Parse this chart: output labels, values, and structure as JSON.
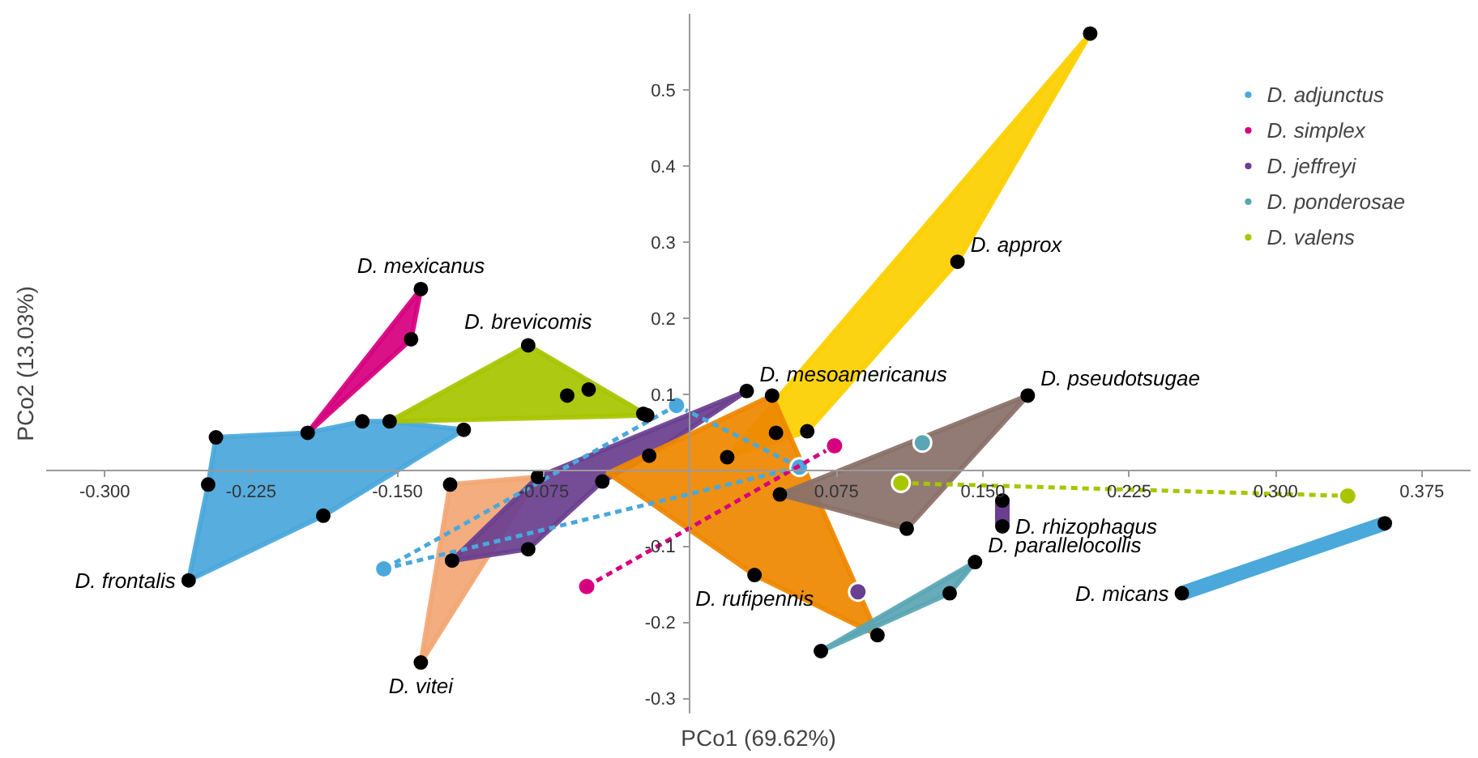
{
  "chart_data": {
    "type": "scatter",
    "xlabel": "PCo1 (69.62%)",
    "ylabel": "PCo2 (13.03%)",
    "xlim": [
      -0.33,
      0.4
    ],
    "ylim": [
      -0.32,
      0.6
    ],
    "xticks": [
      {
        "value": -0.3,
        "label": "-0.300"
      },
      {
        "value": -0.225,
        "label": "-0.225"
      },
      {
        "value": -0.15,
        "label": "-0.150"
      },
      {
        "value": -0.075,
        "label": "-0.075"
      },
      {
        "value": 0.075,
        "label": "0.075"
      },
      {
        "value": 0.15,
        "label": "0.150"
      },
      {
        "value": 0.225,
        "label": "0.225"
      },
      {
        "value": 0.3,
        "label": "0.300"
      },
      {
        "value": 0.375,
        "label": "0.375"
      }
    ],
    "yticks": [
      -0.3,
      -0.2,
      -0.1,
      0.1,
      0.2,
      0.3,
      0.4,
      0.5
    ],
    "grid": false,
    "legend": "top right",
    "series": [
      {
        "type": "area",
        "name": "D. frontalis",
        "color": "#4aa8db",
        "x": [
          -0.257,
          -0.247,
          -0.243,
          -0.196,
          -0.168,
          -0.154,
          -0.116,
          -0.188
        ],
        "values": [
          -0.145,
          -0.019,
          0.043,
          0.049,
          0.064,
          0.064,
          0.053,
          -0.06
        ]
      },
      {
        "type": "area",
        "name": "D. mexicanus",
        "color": "#d6007f",
        "x": [
          -0.138,
          -0.143,
          -0.196
        ],
        "values": [
          0.238,
          0.172,
          0.049
        ]
      },
      {
        "type": "area",
        "name": "D. brevicomis",
        "color": "#a8c500",
        "x": [
          -0.083,
          -0.022,
          -0.154
        ],
        "values": [
          0.164,
          0.072,
          0.064
        ]
      },
      {
        "type": "area",
        "name": "D. vitei",
        "color": "#f2a774",
        "x": [
          -0.138,
          -0.123,
          -0.078
        ],
        "values": [
          -0.253,
          -0.019,
          -0.009
        ]
      },
      {
        "type": "area",
        "name": "D. approx",
        "color": "#fcd000",
        "x": [
          0.137,
          0.06,
          0.019,
          0.205
        ],
        "values": [
          0.274,
          0.051,
          0.017,
          0.574
        ]
      },
      {
        "type": "area",
        "name": "D. mesoamericanus",
        "color": "#6b3f8f",
        "x": [
          0.029,
          -0.078,
          -0.122,
          -0.083,
          -0.045,
          -0.021
        ],
        "values": [
          0.104,
          -0.009,
          -0.119,
          -0.104,
          -0.015,
          0.019
        ]
      },
      {
        "type": "area",
        "name": "D. rufipennis",
        "color": "#ee8800",
        "x": [
          0.033,
          -0.042,
          0.042,
          0.096
        ],
        "values": [
          -0.138,
          -0.004,
          0.098,
          -0.217
        ]
      },
      {
        "type": "area",
        "name": "D. pseudotsugae",
        "color": "#8a7169",
        "x": [
          0.173,
          0.111,
          0.046
        ],
        "values": [
          0.098,
          -0.077,
          -0.032
        ]
      },
      {
        "type": "area",
        "name": "D. parallelocollis",
        "color": "#5aa6b5",
        "x": [
          0.146,
          0.133,
          0.067
        ],
        "values": [
          -0.121,
          -0.162,
          -0.238
        ]
      },
      {
        "type": "line",
        "line_style": "solid",
        "name": "D. rhizophagus",
        "color": "#6b3f8f",
        "x": [
          0.16,
          0.16
        ],
        "values": [
          -0.074,
          -0.04
        ]
      },
      {
        "type": "line",
        "line_style": "solid",
        "name": "D. micans",
        "color": "#4aa8db",
        "x": [
          0.252,
          0.356
        ],
        "values": [
          -0.162,
          -0.07
        ]
      },
      {
        "type": "line",
        "marker": "circle",
        "line_style": "dashed",
        "name": "D. adjunctus",
        "color": "#4aa8db",
        "x": [
          0.056,
          -0.007,
          -0.157
        ],
        "values": [
          0.004,
          0.085,
          -0.13
        ]
      },
      {
        "type": "line",
        "line_style": "dashed",
        "color": "#4aa8db",
        "x": [
          -0.157,
          0.056
        ],
        "values": [
          -0.13,
          0.004
        ]
      },
      {
        "type": "line",
        "marker": "circle",
        "line_style": "dashed",
        "name": "D. simplex",
        "color": "#d6007f",
        "x": [
          -0.053,
          0.074
        ],
        "values": [
          -0.153,
          0.032
        ]
      },
      {
        "type": "scatter",
        "marker": "circle",
        "name": "D. jeffreyi",
        "color": "#6b3f8f",
        "x": [
          0.086
        ],
        "values": [
          -0.16
        ]
      },
      {
        "type": "scatter",
        "marker": "circle",
        "name": "D. ponderosae",
        "color": "#5aa6b5",
        "x": [
          0.119
        ],
        "values": [
          0.036
        ]
      },
      {
        "type": "line",
        "marker": "circle",
        "line_style": "dashed",
        "name": "D. valens",
        "color": "#a8c500",
        "x": [
          0.108,
          0.337
        ],
        "values": [
          -0.017,
          -0.034
        ]
      },
      {
        "color": "#000000",
        "marker": "circle",
        "x": [
          -0.243,
          -0.196,
          -0.168,
          -0.154,
          -0.116,
          -0.188,
          -0.257,
          -0.247,
          -0.138,
          -0.143,
          -0.083,
          -0.022,
          -0.063,
          -0.052,
          -0.024,
          -0.123,
          -0.078,
          -0.138,
          0.205,
          0.137,
          0.06,
          -0.122,
          -0.083,
          -0.045,
          -0.021,
          0.029,
          0.042,
          0.096,
          0.033,
          0.044,
          0.019,
          0.046,
          0.173,
          0.111,
          0.067,
          0.146,
          0.133,
          0.16,
          0.16,
          0.252,
          0.356
        ],
        "values": [
          0.043,
          0.049,
          0.064,
          0.064,
          0.053,
          -0.06,
          -0.145,
          -0.019,
          0.238,
          0.172,
          0.164,
          0.072,
          0.098,
          0.106,
          0.074,
          -0.019,
          -0.009,
          -0.253,
          0.574,
          0.274,
          0.051,
          -0.119,
          -0.104,
          -0.015,
          0.019,
          0.104,
          0.098,
          -0.217,
          -0.138,
          0.049,
          0.017,
          -0.032,
          0.098,
          -0.077,
          -0.238,
          -0.121,
          -0.162,
          -0.04,
          -0.074,
          -0.162,
          -0.07
        ]
      }
    ]
  }
}
